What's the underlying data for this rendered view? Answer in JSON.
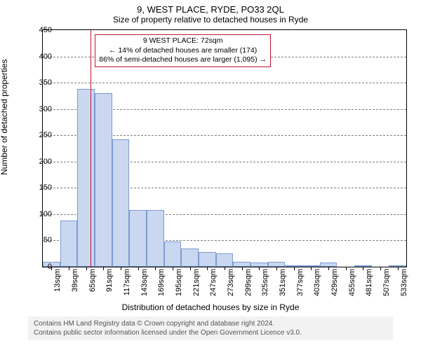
{
  "title": "9, WEST PLACE, RYDE, PO33 2QL",
  "subtitle": "Size of property relative to detached houses in Ryde",
  "ylabel": "Number of detached properties",
  "xlabel": "Distribution of detached houses by size in Ryde",
  "footer_line1": "Contains HM Land Registry data © Crown copyright and database right 2024.",
  "footer_line2": "Contains public sector information licensed under the Open Government Licence v3.0.",
  "chart": {
    "type": "histogram",
    "background_color": "#ffffff",
    "border_color": "#000000",
    "grid_color": "#000000",
    "grid_style": "dashed",
    "bar_fill": "#c9d7f0",
    "bar_stroke": "#7e9bd1",
    "marker_color": "#c41230",
    "anno_border": "#c41230",
    "ylim_min": 0,
    "ylim_max": 450,
    "ytick_step": 50,
    "yticks": [
      0,
      50,
      100,
      150,
      200,
      250,
      300,
      350,
      400,
      450
    ],
    "bin_start": 0,
    "bin_width": 26,
    "bins": [
      {
        "start": 0,
        "label": "13sqm",
        "count": 10
      },
      {
        "start": 26,
        "label": "39sqm",
        "count": 88
      },
      {
        "start": 52,
        "label": "65sqm",
        "count": 338
      },
      {
        "start": 78,
        "label": "91sqm",
        "count": 330
      },
      {
        "start": 104,
        "label": "117sqm",
        "count": 242
      },
      {
        "start": 130,
        "label": "143sqm",
        "count": 108
      },
      {
        "start": 156,
        "label": "169sqm",
        "count": 108
      },
      {
        "start": 182,
        "label": "195sqm",
        "count": 48
      },
      {
        "start": 208,
        "label": "221sqm",
        "count": 35
      },
      {
        "start": 234,
        "label": "247sqm",
        "count": 28
      },
      {
        "start": 260,
        "label": "273sqm",
        "count": 25
      },
      {
        "start": 286,
        "label": "299sqm",
        "count": 10
      },
      {
        "start": 312,
        "label": "325sqm",
        "count": 8
      },
      {
        "start": 338,
        "label": "351sqm",
        "count": 10
      },
      {
        "start": 364,
        "label": "377sqm",
        "count": 2
      },
      {
        "start": 390,
        "label": "403sqm",
        "count": 2
      },
      {
        "start": 416,
        "label": "429sqm",
        "count": 8
      },
      {
        "start": 442,
        "label": "455sqm",
        "count": 0
      },
      {
        "start": 468,
        "label": "481sqm",
        "count": 2
      },
      {
        "start": 494,
        "label": "507sqm",
        "count": 0
      },
      {
        "start": 520,
        "label": "533sqm",
        "count": 2
      }
    ],
    "x_max": 546,
    "marker_value": 72,
    "annotation": {
      "line1": "9 WEST PLACE: 72sqm",
      "line2": "← 14% of detached houses are smaller (174)",
      "line3": "86% of semi-detached houses are larger (1,095) →"
    }
  }
}
